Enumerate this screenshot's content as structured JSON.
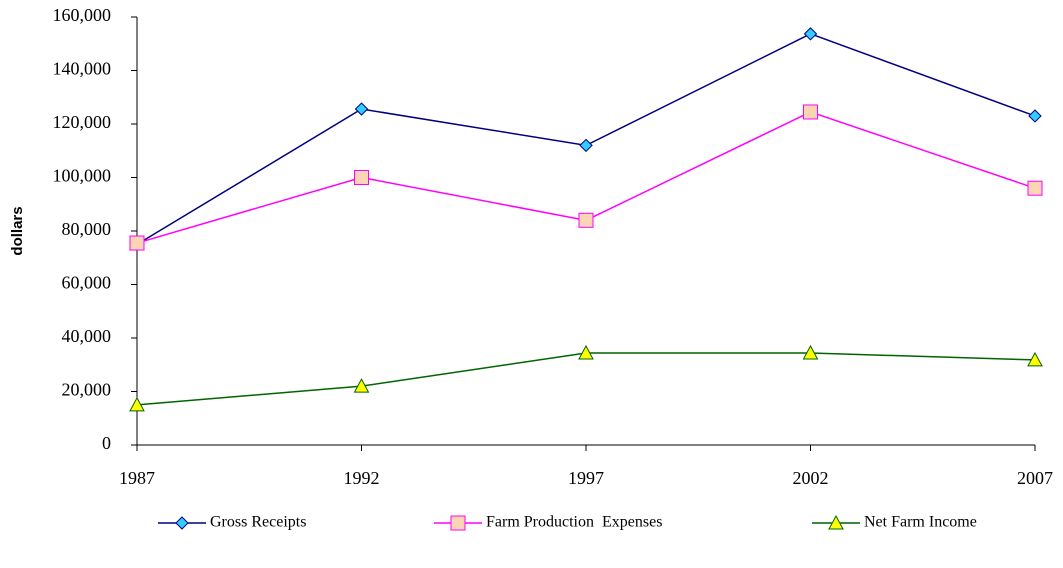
{
  "chart_data": {
    "type": "line",
    "y_label": "dollars",
    "x": [
      1987,
      1992,
      1997,
      2002,
      2007
    ],
    "xlim": [
      1987,
      2007
    ],
    "xticks": [
      1987,
      1992,
      1997,
      2002,
      2007
    ],
    "ylim": [
      0,
      160000
    ],
    "yticks": [
      0,
      {
        "value": 20000,
        "label": "20,000"
      },
      {
        "value": 40000,
        "label": "40,000"
      },
      {
        "value": 60000,
        "label": "60,000"
      },
      {
        "value": 80000,
        "label": "80,000"
      },
      {
        "value": 100000,
        "label": "100,000"
      },
      {
        "value": 120000,
        "label": "120,000"
      },
      {
        "value": 140000,
        "label": "140,000"
      },
      {
        "value": 160000,
        "label": "160,000"
      }
    ],
    "grid": false,
    "legend": "bottom",
    "series": [
      {
        "name": "Gross Receipts",
        "color": "#000080",
        "marker": "diamond",
        "marker_fill": "#33ccff",
        "values": [
          75000,
          125600,
          112000,
          153700,
          123000
        ]
      },
      {
        "name": "Farm Production  Expenses",
        "color": "#ff00ff",
        "marker": "square",
        "marker_fill": "#fcd5b4",
        "values": [
          75500,
          100000,
          84000,
          124500,
          96000
        ]
      },
      {
        "name": "Net Farm Income",
        "color": "#006400",
        "marker": "triangle",
        "marker_fill": "#ffff00",
        "values": [
          15000,
          22000,
          34400,
          34400,
          31800
        ]
      }
    ]
  }
}
